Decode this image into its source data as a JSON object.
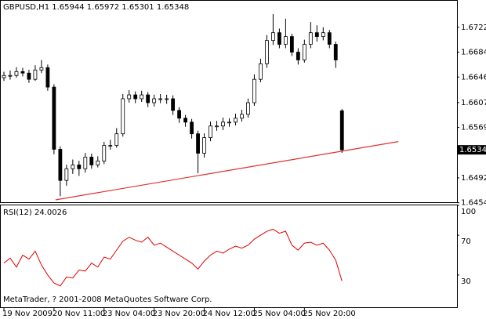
{
  "chart_data": [
    {
      "type": "candlestick",
      "title": "GBPUSD,H1  1.65944 1.65972 1.65301 1.65348",
      "x": [
        0,
        1,
        2,
        3,
        4,
        5,
        6,
        7,
        8,
        9,
        10,
        11,
        12,
        13,
        14,
        15,
        16,
        17,
        18,
        19,
        20,
        21,
        22,
        23,
        24,
        25,
        26,
        27,
        28,
        29,
        30,
        31,
        32,
        33,
        34,
        35,
        36,
        37,
        38,
        39,
        40,
        41,
        42,
        43,
        44,
        45,
        46,
        47,
        48,
        49,
        50,
        51,
        52,
        53,
        54
      ],
      "open": [
        1.6645,
        1.66484,
        1.66484,
        1.66543,
        1.6652,
        1.66425,
        1.66567,
        1.66603,
        1.66306,
        1.65356,
        1.64881,
        1.65059,
        1.65118,
        1.65059,
        1.65237,
        1.65118,
        1.65178,
        1.65415,
        1.65415,
        1.65593,
        1.66128,
        1.66187,
        1.66128,
        1.66187,
        1.66068,
        1.66128,
        1.66128,
        1.66128,
        1.6595,
        1.65831,
        1.65771,
        1.65593,
        1.65296,
        1.65534,
        1.65712,
        1.65712,
        1.65771,
        1.65771,
        1.65831,
        1.6589,
        1.66068,
        1.66425,
        1.66662,
        1.67018,
        1.67137,
        1.66959,
        1.67078,
        1.6684,
        1.66721,
        1.66959,
        1.67137,
        1.67078,
        1.67137,
        1.66959,
        1.65944
      ],
      "high": [
        1.6654,
        1.6656,
        1.6661,
        1.666,
        1.6657,
        1.6664,
        1.6672,
        1.6665,
        1.6635,
        1.654,
        1.6512,
        1.652,
        1.6518,
        1.653,
        1.6529,
        1.6525,
        1.6547,
        1.655,
        1.6568,
        1.662,
        1.6626,
        1.6624,
        1.6625,
        1.6623,
        1.6619,
        1.662,
        1.6619,
        1.6618,
        1.66,
        1.6588,
        1.6582,
        1.6564,
        1.656,
        1.6578,
        1.6579,
        1.6584,
        1.6583,
        1.659,
        1.6596,
        1.6613,
        1.665,
        1.6674,
        1.671,
        1.6742,
        1.672,
        1.6735,
        1.6712,
        1.669,
        1.6703,
        1.673,
        1.6725,
        1.6722,
        1.6718,
        1.67,
        1.65972
      ],
      "low": [
        1.664,
        1.6642,
        1.6645,
        1.6647,
        1.6637,
        1.664,
        1.6652,
        1.6625,
        1.6528,
        1.6464,
        1.648,
        1.6498,
        1.6495,
        1.65,
        1.6506,
        1.6508,
        1.6513,
        1.6535,
        1.6538,
        1.6555,
        1.6607,
        1.6606,
        1.6608,
        1.66,
        1.6601,
        1.6606,
        1.6605,
        1.6588,
        1.6576,
        1.657,
        1.6552,
        1.6499,
        1.6523,
        1.6548,
        1.6564,
        1.6565,
        1.657,
        1.6572,
        1.6578,
        1.6584,
        1.6602,
        1.6638,
        1.666,
        1.6695,
        1.669,
        1.669,
        1.6678,
        1.6665,
        1.6668,
        1.669,
        1.67,
        1.6702,
        1.669,
        1.666,
        1.65301
      ],
      "close": [
        1.66484,
        1.66484,
        1.66543,
        1.6652,
        1.66425,
        1.66567,
        1.66603,
        1.66306,
        1.65356,
        1.64881,
        1.65059,
        1.65118,
        1.65059,
        1.65237,
        1.65118,
        1.65178,
        1.65415,
        1.65415,
        1.65593,
        1.66128,
        1.66187,
        1.66128,
        1.66187,
        1.66068,
        1.66128,
        1.66128,
        1.66128,
        1.6595,
        1.65831,
        1.65771,
        1.65593,
        1.65296,
        1.65534,
        1.65712,
        1.65712,
        1.65771,
        1.65771,
        1.65831,
        1.6589,
        1.66068,
        1.66425,
        1.66662,
        1.67018,
        1.67137,
        1.66959,
        1.67078,
        1.6684,
        1.66721,
        1.66959,
        1.67137,
        1.67078,
        1.67137,
        1.66959,
        1.66721,
        1.65348
      ],
      "color": "#000000",
      "xlim": [
        -0.5,
        72.375
      ],
      "ylim": [
        1.64548,
        1.67612
      ],
      "yticks": [
        {
          "value": 1.6722,
          "label": "1.67220"
        },
        {
          "value": 1.6684,
          "label": "1.66840"
        },
        {
          "value": 1.6646,
          "label": "1.66460"
        },
        {
          "value": 1.6607,
          "label": "1.66070"
        },
        {
          "value": 1.6569,
          "label": "1.65690"
        },
        {
          "value": 1.6492,
          "label": "1.64920"
        },
        {
          "value": 1.6454,
          "label": "1.64540"
        }
      ],
      "trendline": {
        "x": [
          8.25,
          63
        ],
        "y": [
          1.64584,
          1.65474
        ],
        "color": "#e03030"
      }
    },
    {
      "type": "line",
      "title": "RSI(12) 24.0026",
      "x": [
        0,
        1,
        2,
        3,
        4,
        5,
        6,
        7,
        8,
        9,
        10,
        11,
        12,
        13,
        14,
        15,
        16,
        17,
        18,
        19,
        20,
        21,
        22,
        23,
        24,
        25,
        26,
        27,
        28,
        29,
        30,
        31,
        32,
        33,
        34,
        35,
        36,
        37,
        38,
        39,
        40,
        41,
        42,
        43,
        44,
        45,
        46,
        47,
        48,
        49,
        50,
        51,
        52,
        53,
        54
      ],
      "series": [
        {
          "color": "#e00000",
          "values": [
            42,
            47,
            38,
            50,
            46,
            54,
            40,
            30,
            22,
            19,
            28,
            27,
            35,
            34,
            42,
            38,
            48,
            46,
            55,
            64,
            68,
            65,
            63,
            68,
            60,
            62,
            58,
            54,
            50,
            46,
            42,
            36,
            44,
            50,
            54,
            52,
            56,
            59,
            57,
            60,
            66,
            70,
            74,
            76,
            72,
            74,
            60,
            55,
            62,
            63,
            60,
            62,
            55,
            45,
            24.0026
          ]
        }
      ],
      "xlim": [
        -0.5,
        72.375
      ],
      "ylim": [
        0,
        100
      ],
      "yticks": [
        100,
        70,
        30
      ],
      "xticks": [
        {
          "value": 0,
          "label": "19 Nov 2009"
        },
        {
          "value": 8,
          "label": "20 Nov 11:00"
        },
        {
          "value": 16,
          "label": "23 Nov 04:00"
        },
        {
          "value": 24,
          "label": "23 Nov 20:00"
        },
        {
          "value": 32,
          "label": "24 Nov 12:00"
        },
        {
          "value": 40,
          "label": "25 Nov 04:00"
        },
        {
          "value": 48,
          "label": "25 Nov 20:00"
        }
      ]
    }
  ],
  "footer": "MetaTrader, ? 2001-2008 MetaQuotes Software Corp."
}
